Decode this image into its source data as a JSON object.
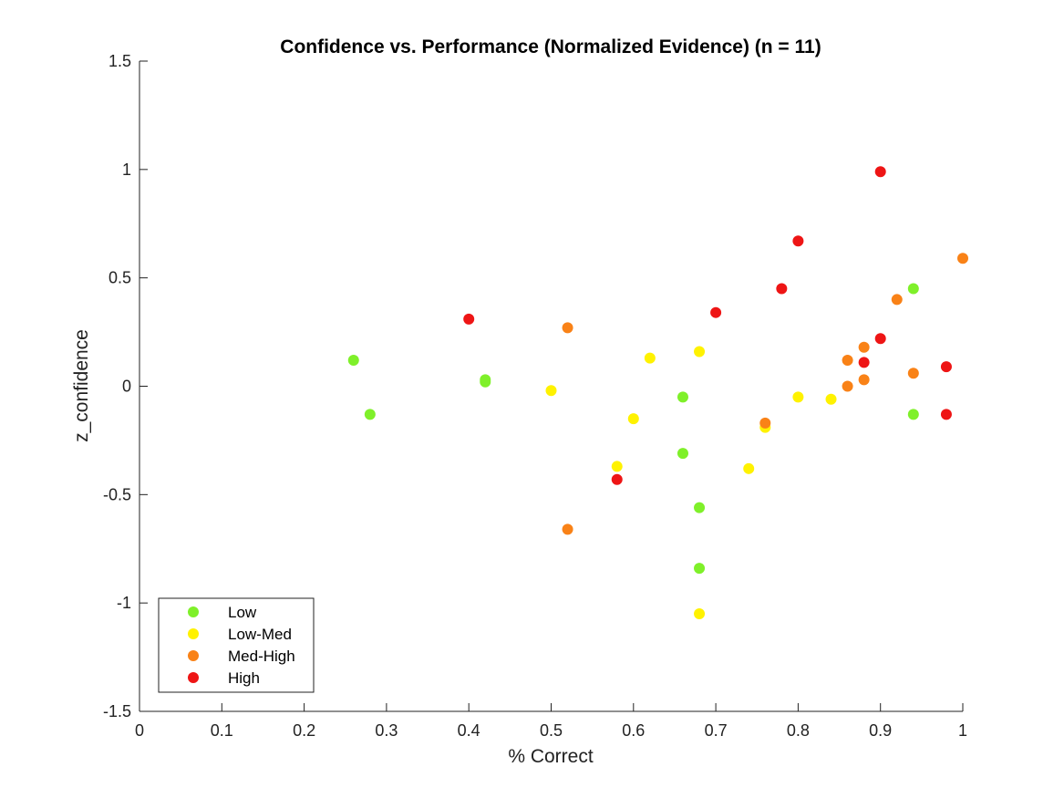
{
  "chart_data": {
    "type": "scatter",
    "title": "Confidence vs. Performance (Normalized Evidence) (n = 11)",
    "xlabel": "% Correct",
    "ylabel": "z_confidence",
    "xlim": [
      0,
      1
    ],
    "ylim": [
      -1.5,
      1.5
    ],
    "x_ticks": [
      0,
      0.1,
      0.2,
      0.3,
      0.4,
      0.5,
      0.6,
      0.7,
      0.8,
      0.9,
      1
    ],
    "x_tick_labels": [
      "0",
      "0.1",
      "0.2",
      "0.3",
      "0.4",
      "0.5",
      "0.6",
      "0.7",
      "0.8",
      "0.9",
      "1"
    ],
    "y_ticks": [
      -1.5,
      -1,
      -0.5,
      0,
      0.5,
      1,
      1.5
    ],
    "y_tick_labels": [
      "-1.5",
      "-1",
      "-0.5",
      "0",
      "0.5",
      "1",
      "1.5"
    ],
    "grid": false,
    "legend_position": "bottom-left",
    "series": [
      {
        "name": "Low",
        "color": "#7FF02A",
        "points": [
          [
            0.26,
            0.12
          ],
          [
            0.28,
            -0.13
          ],
          [
            0.42,
            0.03
          ],
          [
            0.42,
            0.02
          ],
          [
            0.66,
            -0.05
          ],
          [
            0.66,
            -0.31
          ],
          [
            0.68,
            -0.56
          ],
          [
            0.68,
            -0.84
          ],
          [
            0.94,
            0.45
          ],
          [
            0.94,
            -0.13
          ]
        ]
      },
      {
        "name": "Low-Med",
        "color": "#FFF200",
        "points": [
          [
            0.5,
            -0.02
          ],
          [
            0.58,
            -0.37
          ],
          [
            0.6,
            -0.15
          ],
          [
            0.62,
            0.13
          ],
          [
            0.68,
            0.16
          ],
          [
            0.68,
            -1.05
          ],
          [
            0.74,
            -0.38
          ],
          [
            0.76,
            -0.19
          ],
          [
            0.8,
            -0.05
          ],
          [
            0.84,
            -0.06
          ]
        ]
      },
      {
        "name": "Med-High",
        "color": "#F98217",
        "points": [
          [
            0.52,
            0.27
          ],
          [
            0.52,
            -0.66
          ],
          [
            0.76,
            -0.17
          ],
          [
            0.86,
            0.12
          ],
          [
            0.86,
            0.0
          ],
          [
            0.88,
            0.18
          ],
          [
            0.88,
            0.03
          ],
          [
            0.92,
            0.4
          ],
          [
            0.94,
            0.06
          ],
          [
            1.0,
            0.59
          ]
        ]
      },
      {
        "name": "High",
        "color": "#EE1515",
        "points": [
          [
            0.4,
            0.31
          ],
          [
            0.58,
            -0.43
          ],
          [
            0.7,
            0.34
          ],
          [
            0.78,
            0.45
          ],
          [
            0.8,
            0.67
          ],
          [
            0.88,
            0.11
          ],
          [
            0.9,
            0.22
          ],
          [
            0.9,
            0.99
          ],
          [
            0.98,
            0.09
          ],
          [
            0.98,
            -0.13
          ]
        ]
      }
    ]
  }
}
